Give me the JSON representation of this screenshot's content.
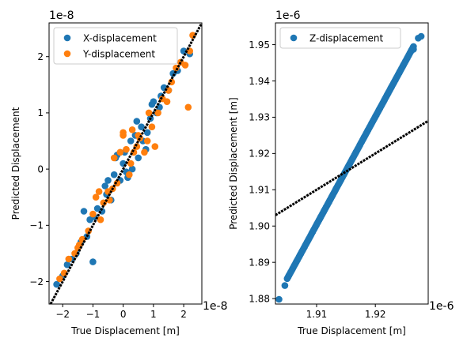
{
  "colors": {
    "x_series": "#1f77b4",
    "y_series": "#ff7f0e",
    "z_series": "#1f77b4",
    "reference_line": "#000000",
    "legend_border": "#cccccc"
  },
  "chart_data": [
    {
      "type": "scatter",
      "title": "",
      "xlabel": "True Displacement [m]",
      "ylabel": "Predicted Displacement",
      "x_offset_label": "1e-8",
      "y_offset_label": "1e-8",
      "xlim": [
        -2.45,
        2.6
      ],
      "ylim": [
        -2.4,
        2.6
      ],
      "x_ticks": [
        -2,
        -1,
        0,
        1,
        2
      ],
      "y_ticks": [
        -2,
        -1,
        0,
        1,
        2
      ],
      "x_tick_labels": [
        "−2",
        "−1",
        "0",
        "1",
        "2"
      ],
      "y_tick_labels": [
        "−2",
        "−1",
        "0",
        "1",
        "2"
      ],
      "grid": false,
      "legend_position": "top-left",
      "reference_line": {
        "x": [
          -2.45,
          2.6
        ],
        "y": [
          -2.45,
          2.6
        ]
      },
      "series": [
        {
          "name": "X-displacement",
          "x": [
            -2.2,
            -2.0,
            -1.85,
            -1.7,
            -1.55,
            -1.4,
            -1.2,
            -1.0,
            -0.95,
            -0.85,
            -0.7,
            -0.6,
            -0.55,
            -0.4,
            -0.3,
            -0.25,
            -0.1,
            0.0,
            0.05,
            0.15,
            0.25,
            0.3,
            0.4,
            0.5,
            0.6,
            0.65,
            0.8,
            0.9,
            1.0,
            1.1,
            1.2,
            1.35,
            1.5,
            1.65,
            1.8,
            2.0,
            2.2,
            -1.3,
            -0.5,
            0.45,
            0.75,
            1.25,
            -0.2,
            0.1,
            0.95,
            -1.1
          ],
          "y": [
            -2.05,
            -1.9,
            -1.7,
            -1.6,
            -1.5,
            -1.3,
            -1.2,
            -1.65,
            -0.85,
            -0.7,
            -0.75,
            -0.3,
            -0.45,
            -0.55,
            -0.1,
            0.2,
            -0.2,
            0.1,
            0.3,
            -0.15,
            0.5,
            0.0,
            0.6,
            0.2,
            0.75,
            0.5,
            0.65,
            0.9,
            1.2,
            1.0,
            1.1,
            1.45,
            1.4,
            1.7,
            1.75,
            2.1,
            2.05,
            -0.75,
            -0.2,
            0.85,
            0.35,
            1.3,
            0.25,
            -0.05,
            1.15,
            -0.9
          ]
        },
        {
          "name": "Y-displacement",
          "x": [
            -2.1,
            -1.95,
            -1.8,
            -1.6,
            -1.45,
            -1.35,
            -1.15,
            -1.0,
            -0.9,
            -0.75,
            -0.65,
            -0.5,
            -0.45,
            -0.35,
            -0.2,
            -0.1,
            0.0,
            0.1,
            0.2,
            0.3,
            0.35,
            0.45,
            0.55,
            0.7,
            0.85,
            0.95,
            1.05,
            1.15,
            1.3,
            1.45,
            1.6,
            1.75,
            1.9,
            2.05,
            2.2,
            2.3,
            -0.8,
            -0.3,
            0.0,
            0.5,
            0.8,
            1.5,
            2.15,
            -1.5,
            0.25
          ],
          "y": [
            -1.95,
            -1.85,
            -1.6,
            -1.5,
            -1.35,
            -1.25,
            -1.1,
            -0.8,
            -0.5,
            -0.9,
            -0.6,
            -0.4,
            -0.55,
            -0.35,
            -0.25,
            0.3,
            0.6,
            0.35,
            -0.1,
            0.7,
            0.3,
            0.4,
            0.55,
            0.3,
            1.0,
            0.75,
            0.4,
            1.0,
            1.25,
            1.2,
            1.55,
            1.8,
            1.9,
            1.85,
            2.1,
            2.38,
            -0.4,
            0.2,
            0.65,
            0.6,
            0.5,
            1.4,
            1.1,
            -1.4,
            0.1
          ]
        }
      ]
    },
    {
      "type": "scatter",
      "title": "",
      "xlabel": "True Displacement [m]",
      "ylabel": "Predicted Displacement [m]",
      "x_offset_label": "1e-6",
      "y_offset_label": "1e-6",
      "xlim": [
        1.903,
        1.929
      ],
      "ylim": [
        1.8785,
        1.956
      ],
      "x_ticks": [
        1.91,
        1.92
      ],
      "y_ticks": [
        1.88,
        1.89,
        1.9,
        1.91,
        1.92,
        1.93,
        1.94,
        1.95
      ],
      "x_tick_labels": [
        "1.91",
        "1.92"
      ],
      "y_tick_labels": [
        "1.88",
        "1.89",
        "1.90",
        "1.91",
        "1.92",
        "1.93",
        "1.94",
        "1.95"
      ],
      "grid": false,
      "legend_position": "top-left",
      "reference_line": {
        "x": [
          1.903,
          1.929
        ],
        "y": [
          1.903,
          1.929
        ]
      },
      "series": [
        {
          "name": "Z-displacement",
          "line_x_range": [
            1.905,
            1.9265
          ],
          "line_y_range": [
            1.8855,
            1.9495
          ],
          "outliers": {
            "x": [
              1.9036,
              1.9046,
              1.9265,
              1.9273,
              1.9278
            ],
            "y": [
              1.8798,
              1.8836,
              1.9487,
              1.9518,
              1.9523
            ]
          }
        }
      ]
    }
  ]
}
